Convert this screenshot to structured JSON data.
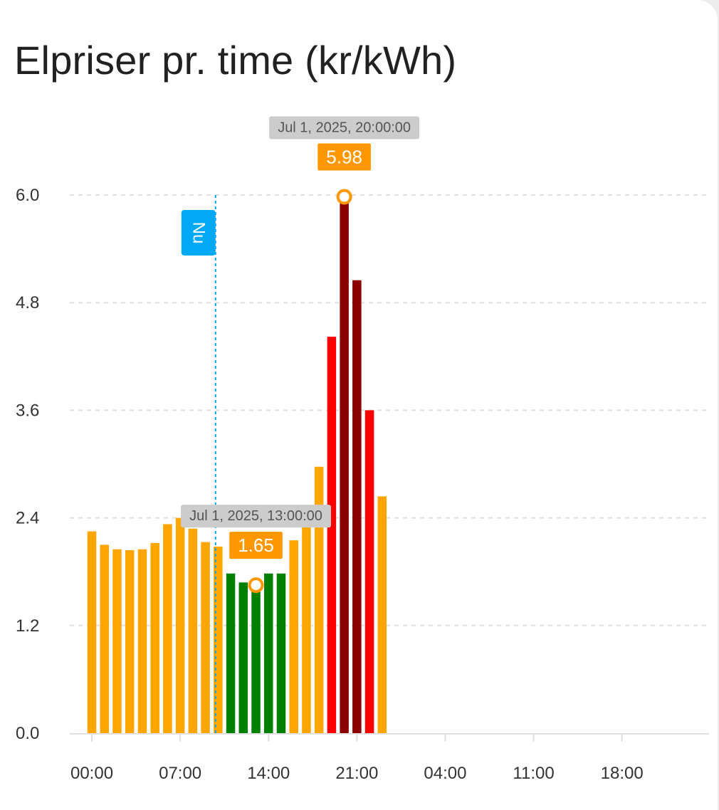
{
  "card": {
    "title": "Elpriser pr. time (kr/kWh)"
  },
  "chart_data": {
    "type": "bar",
    "title": "Elpriser pr. time (kr/kWh)",
    "xlabel": "",
    "ylabel": "",
    "ylim": [
      0,
      6.0
    ],
    "y_ticks": [
      0.0,
      1.2,
      2.4,
      3.6,
      4.8,
      6.0
    ],
    "y_tick_labels": [
      "0.0",
      "1.2",
      "2.4",
      "3.6",
      "4.8",
      "6.0"
    ],
    "x_tick_labels": [
      "00:00",
      "07:00",
      "14:00",
      "21:00",
      "04:00",
      "11:00",
      "18:00"
    ],
    "x_tick_hours": [
      0,
      7,
      14,
      21,
      28,
      35,
      42
    ],
    "x_range_hours": [
      -1.75,
      48.9
    ],
    "grid": true,
    "legend": "none",
    "hours": [
      0,
      1,
      2,
      3,
      4,
      5,
      6,
      7,
      8,
      9,
      10,
      11,
      12,
      13,
      14,
      15,
      16,
      17,
      18,
      19,
      20,
      21,
      22,
      23
    ],
    "values": [
      2.25,
      2.1,
      2.05,
      2.04,
      2.05,
      2.12,
      2.33,
      2.4,
      2.28,
      2.13,
      2.08,
      1.78,
      1.68,
      1.65,
      1.78,
      1.78,
      2.15,
      2.51,
      2.97,
      4.42,
      5.98,
      5.05,
      3.6,
      2.64
    ],
    "bar_colors": [
      "#FFA500",
      "#FFA500",
      "#FFA500",
      "#FFA500",
      "#FFA500",
      "#FFA500",
      "#FFA500",
      "#FFA500",
      "#FFA500",
      "#FFA500",
      "#FFA500",
      "#008000",
      "#008000",
      "#008000",
      "#008000",
      "#008000",
      "#FFA500",
      "#FFA500",
      "#FFA500",
      "#FF0000",
      "#8B0000",
      "#8B0000",
      "#FF0000",
      "#FFA500"
    ],
    "now_marker": {
      "label": "Nu",
      "hour": 9.8,
      "color": "#03A9F4"
    },
    "annotations": [
      {
        "kind": "max",
        "hour": 20,
        "value": 5.98,
        "value_label": "5.98",
        "time_label": "Jul 1, 2025, 20:00:00"
      },
      {
        "kind": "min",
        "hour": 13,
        "value": 1.65,
        "value_label": "1.65",
        "time_label": "Jul 1, 2025, 13:00:00"
      }
    ]
  },
  "colors": {
    "annotation_badge": "#FF9800",
    "time_badge": "#CCCCCC",
    "grid": "#E0E0E0",
    "axis": "#E0E0E0"
  }
}
